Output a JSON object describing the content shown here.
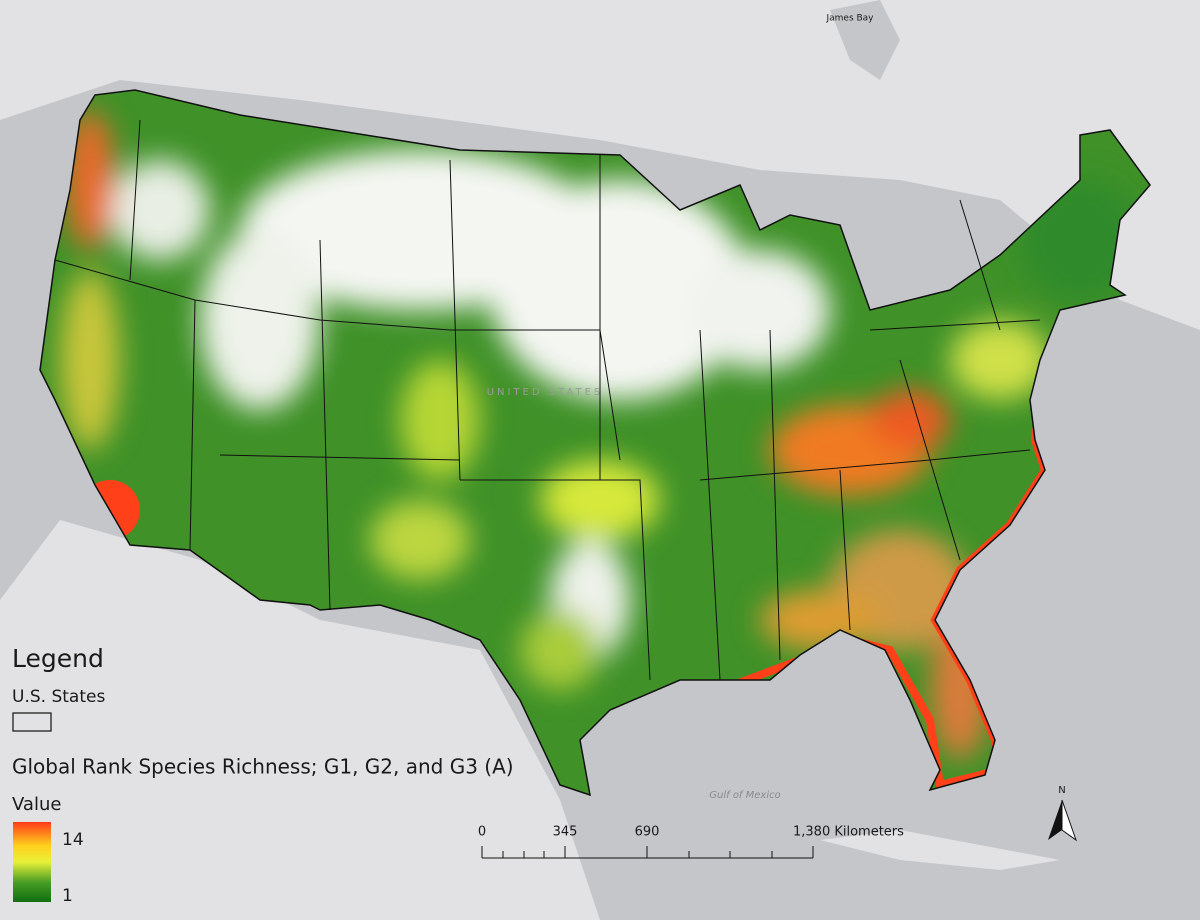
{
  "map": {
    "basemap_labels": {
      "bay": "James Bay",
      "gulf": "Gulf of Mexico",
      "country": "UNITED STATES"
    },
    "legend": {
      "title": "Legend",
      "layers": [
        {
          "name": "U.S. States"
        },
        {
          "name": "Global Rank Species Richness; G1, G2, and G3 (A)",
          "field": "Value",
          "high": "14",
          "low": "1"
        }
      ]
    },
    "scale_bar": {
      "labels": [
        "0",
        "345",
        "690",
        "1,380 Kilometers"
      ]
    },
    "north_arrow": "N"
  }
}
